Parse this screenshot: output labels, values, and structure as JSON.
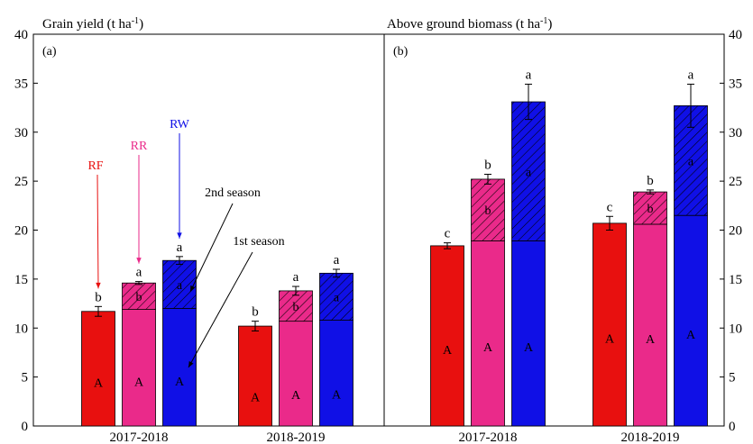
{
  "chart_data": {
    "type": "bar",
    "layout": "stacked",
    "y_axis": {
      "range": [
        0,
        40
      ],
      "ticks": [
        "0",
        "5",
        "10",
        "15",
        "20",
        "25",
        "30",
        "35",
        "40"
      ]
    },
    "colors": {
      "RF": "#e8100f",
      "RR": "#ea2a8a",
      "RW": "#1010e6"
    },
    "panels": [
      {
        "panel_label": "(a)",
        "title": "Grain yield (t ha",
        "title_sup": "-1",
        "title_end": ")",
        "y_axis_side": "left",
        "groups": [
          {
            "label": "2017-2018",
            "bars": [
              {
                "treatment": "RF",
                "first": 11.7,
                "second": 0,
                "err": 0.5,
                "letter_inner": "A",
                "letter_top": "b",
                "letter_second": ""
              },
              {
                "treatment": "RR",
                "first": 11.9,
                "second": 2.7,
                "err": 0.15,
                "letter_inner": "A",
                "letter_top": "a",
                "letter_second": "b"
              },
              {
                "treatment": "RW",
                "first": 12.0,
                "second": 4.9,
                "err": 0.4,
                "letter_inner": "A",
                "letter_top": "a",
                "letter_second": "a"
              }
            ]
          },
          {
            "label": "2018-2019",
            "bars": [
              {
                "treatment": "RF",
                "first": 10.2,
                "second": 0,
                "err": 0.5,
                "letter_inner": "A",
                "letter_top": "b",
                "letter_second": ""
              },
              {
                "treatment": "RR",
                "first": 10.7,
                "second": 3.1,
                "err": 0.45,
                "letter_inner": "A",
                "letter_top": "a",
                "letter_second": "b"
              },
              {
                "treatment": "RW",
                "first": 10.8,
                "second": 4.8,
                "err": 0.4,
                "letter_inner": "A",
                "letter_top": "a",
                "letter_second": "a"
              }
            ]
          }
        ]
      },
      {
        "panel_label": "(b)",
        "title": "Above ground biomass (t ha",
        "title_sup": "-1",
        "title_end": ")",
        "y_axis_side": "right",
        "groups": [
          {
            "label": "2017-2018",
            "bars": [
              {
                "treatment": "RF",
                "first": 18.4,
                "second": 0,
                "err": 0.3,
                "letter_inner": "A",
                "letter_top": "c",
                "letter_second": ""
              },
              {
                "treatment": "RR",
                "first": 18.9,
                "second": 6.3,
                "err": 0.5,
                "letter_inner": "A",
                "letter_top": "b",
                "letter_second": "b"
              },
              {
                "treatment": "RW",
                "first": 18.9,
                "second": 14.2,
                "err": 1.8,
                "letter_inner": "A",
                "letter_top": "a",
                "letter_second": "a"
              }
            ]
          },
          {
            "label": "2018-2019",
            "bars": [
              {
                "treatment": "RF",
                "first": 20.7,
                "second": 0,
                "err": 0.7,
                "letter_inner": "A",
                "letter_top": "c",
                "letter_second": ""
              },
              {
                "treatment": "RR",
                "first": 20.6,
                "second": 3.3,
                "err": 0.2,
                "letter_inner": "A",
                "letter_top": "b",
                "letter_second": "b"
              },
              {
                "treatment": "RW",
                "first": 21.5,
                "second": 11.2,
                "err": 2.2,
                "letter_inner": "A",
                "letter_top": "a",
                "letter_second": "a"
              }
            ]
          }
        ]
      }
    ],
    "annotations": {
      "treatments": [
        "RF",
        "RR",
        "RW"
      ],
      "second_season": "2nd season",
      "first_season": "1st season"
    }
  }
}
